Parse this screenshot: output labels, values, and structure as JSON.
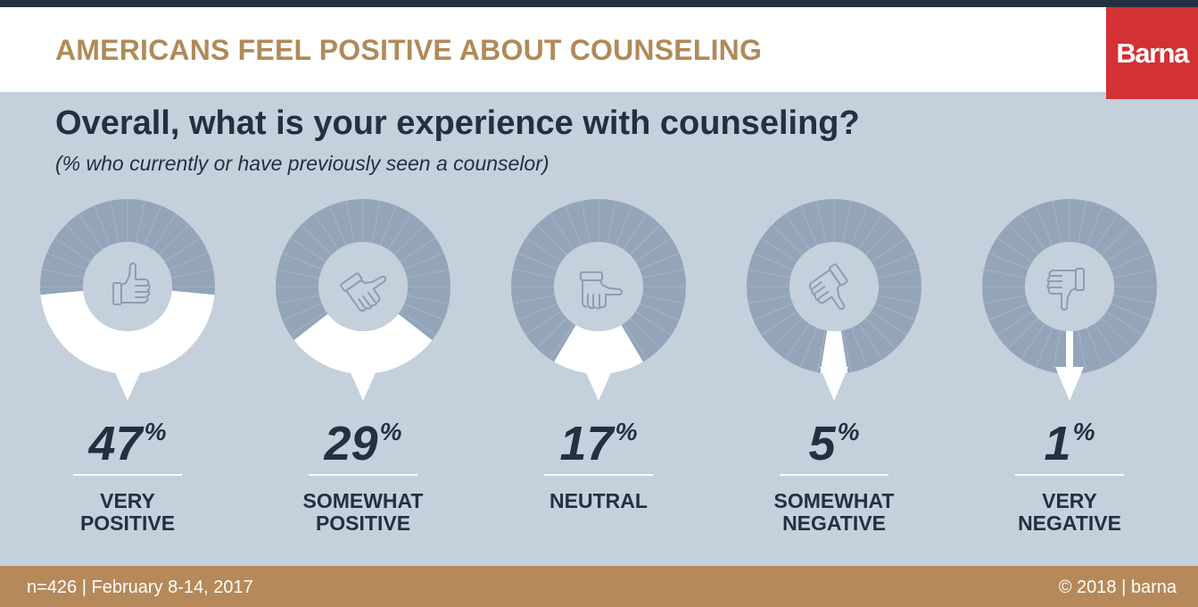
{
  "header": {
    "title": "AMERICANS FEEL POSITIVE ABOUT COUNSELING",
    "brand": "Barna"
  },
  "question": "Overall, what is your experience with counseling?",
  "subtitle": "(% who currently or have previously seen a counselor)",
  "footer": {
    "left": "n=426 | February 8-14, 2017",
    "right": "© 2018 | barna"
  },
  "colors": {
    "ring": "#94a5b9",
    "ring_tick": "#a5b4c6",
    "highlight": "#ffffff",
    "center": "#c4d0dc",
    "icon": "#8c9db2",
    "text": "#22303f",
    "accent": "#b08a58",
    "brand": "#d43134"
  },
  "chart_data": {
    "type": "pie",
    "title": "Overall, what is your experience with counseling?",
    "unit": "%",
    "categories": [
      "VERY POSITIVE",
      "SOMEWHAT POSITIVE",
      "NEUTRAL",
      "SOMEWHAT NEGATIVE",
      "VERY NEGATIVE"
    ],
    "values": [
      47,
      29,
      17,
      5,
      1
    ],
    "icons": [
      "thumbs-up-icon",
      "thumbs-tilted-up-icon",
      "pointing-hand-icon",
      "thumbs-tilted-down-icon",
      "thumbs-down-icon"
    ]
  }
}
